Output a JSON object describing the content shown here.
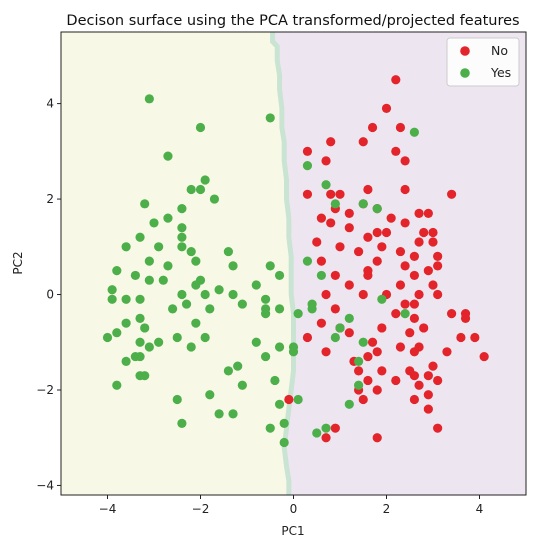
{
  "chart_data": {
    "type": "scatter",
    "title": "Decison surface using the PCA transformed/projected features",
    "xlabel": "PC1",
    "ylabel": "PC2",
    "xlim": [
      -5,
      5
    ],
    "ylim": [
      -4.2,
      5.5
    ],
    "xticks": [
      -4,
      -2,
      0,
      2,
      4
    ],
    "xtick_labels": [
      "−4",
      "−2",
      "0",
      "2",
      "4"
    ],
    "yticks": [
      -4,
      -2,
      0,
      2,
      4
    ],
    "ytick_labels": [
      "−4",
      "−2",
      "0",
      "2",
      "4"
    ],
    "grid": false,
    "legend_position": "top-right",
    "regions": [
      {
        "class": "Yes",
        "color": "#f8f8e6",
        "side": "left"
      },
      {
        "class": "No",
        "color": "#ede6f0",
        "side": "right"
      }
    ],
    "boundary_color": "#c9e4d2",
    "boundary": [
      [
        -0.45,
        5.5
      ],
      [
        -0.45,
        5.3
      ],
      [
        -0.35,
        5.2
      ],
      [
        -0.35,
        4.9
      ],
      [
        -0.3,
        4.6
      ],
      [
        -0.3,
        4.3
      ],
      [
        -0.25,
        3.9
      ],
      [
        -0.25,
        3.5
      ],
      [
        -0.2,
        3.2
      ],
      [
        -0.2,
        2.8
      ],
      [
        -0.15,
        2.4
      ],
      [
        -0.15,
        2.0
      ],
      [
        -0.1,
        1.6
      ],
      [
        -0.1,
        1.2
      ],
      [
        -0.05,
        0.8
      ],
      [
        -0.05,
        0.4
      ],
      [
        -0.05,
        0.0
      ],
      [
        0.0,
        -0.4
      ],
      [
        0.0,
        -0.8
      ],
      [
        0.0,
        -1.2
      ],
      [
        0.0,
        -1.6
      ],
      [
        -0.05,
        -2.0
      ],
      [
        -0.1,
        -2.4
      ],
      [
        -0.15,
        -2.8
      ],
      [
        -0.2,
        -3.2
      ],
      [
        -0.15,
        -3.6
      ],
      [
        -0.1,
        -3.9
      ],
      [
        -0.1,
        -4.2
      ]
    ],
    "series": [
      {
        "name": "No",
        "color": "#e3242b",
        "points": [
          [
            2.2,
            4.5
          ],
          [
            2.0,
            3.9
          ],
          [
            2.3,
            3.5
          ],
          [
            1.7,
            3.5
          ],
          [
            2.2,
            3.0
          ],
          [
            1.5,
            3.2
          ],
          [
            0.8,
            3.2
          ],
          [
            2.4,
            2.8
          ],
          [
            0.3,
            3.0
          ],
          [
            0.7,
            2.8
          ],
          [
            1.6,
            2.2
          ],
          [
            1.0,
            2.1
          ],
          [
            0.8,
            2.1
          ],
          [
            0.3,
            2.1
          ],
          [
            2.4,
            2.2
          ],
          [
            3.4,
            2.1
          ],
          [
            1.5,
            1.9
          ],
          [
            1.8,
            1.8
          ],
          [
            0.9,
            1.8
          ],
          [
            0.6,
            1.6
          ],
          [
            1.2,
            1.7
          ],
          [
            2.1,
            1.6
          ],
          [
            2.7,
            1.7
          ],
          [
            2.9,
            1.7
          ],
          [
            0.8,
            1.5
          ],
          [
            2.4,
            1.5
          ],
          [
            1.8,
            1.3
          ],
          [
            2.0,
            1.3
          ],
          [
            1.2,
            1.4
          ],
          [
            0.5,
            1.1
          ],
          [
            1.6,
            1.2
          ],
          [
            2.8,
            1.3
          ],
          [
            3.0,
            1.3
          ],
          [
            2.7,
            1.1
          ],
          [
            3.0,
            1.1
          ],
          [
            1.0,
            1.0
          ],
          [
            1.9,
            1.0
          ],
          [
            1.4,
            0.9
          ],
          [
            2.3,
            0.9
          ],
          [
            2.6,
            0.8
          ],
          [
            1.8,
            0.7
          ],
          [
            3.1,
            0.8
          ],
          [
            0.6,
            0.7
          ],
          [
            1.6,
            0.5
          ],
          [
            2.4,
            0.6
          ],
          [
            2.9,
            0.5
          ],
          [
            3.1,
            0.6
          ],
          [
            0.9,
            0.4
          ],
          [
            1.6,
            0.4
          ],
          [
            2.6,
            0.4
          ],
          [
            1.2,
            0.2
          ],
          [
            2.3,
            0.2
          ],
          [
            3.0,
            0.2
          ],
          [
            0.7,
            0.0
          ],
          [
            1.5,
            0.0
          ],
          [
            2.0,
            0.0
          ],
          [
            2.7,
            0.0
          ],
          [
            3.1,
            0.0
          ],
          [
            2.4,
            -0.2
          ],
          [
            2.6,
            -0.2
          ],
          [
            0.9,
            -0.3
          ],
          [
            2.2,
            -0.4
          ],
          [
            3.4,
            -0.4
          ],
          [
            3.7,
            -0.4
          ],
          [
            3.7,
            -0.5
          ],
          [
            2.6,
            -0.5
          ],
          [
            0.6,
            -0.6
          ],
          [
            1.0,
            -0.7
          ],
          [
            1.9,
            -0.7
          ],
          [
            2.8,
            -0.7
          ],
          [
            1.2,
            -0.8
          ],
          [
            2.5,
            -0.8
          ],
          [
            0.3,
            -0.9
          ],
          [
            3.6,
            -0.9
          ],
          [
            3.9,
            -0.9
          ],
          [
            1.7,
            -1.0
          ],
          [
            2.3,
            -1.1
          ],
          [
            2.7,
            -1.1
          ],
          [
            2.6,
            -1.2
          ],
          [
            1.3,
            -1.4
          ],
          [
            1.6,
            -1.3
          ],
          [
            1.8,
            -1.2
          ],
          [
            3.3,
            -1.2
          ],
          [
            4.1,
            -1.3
          ],
          [
            0.7,
            -1.2
          ],
          [
            1.4,
            -1.6
          ],
          [
            1.9,
            -1.6
          ],
          [
            2.5,
            -1.6
          ],
          [
            2.6,
            -1.7
          ],
          [
            2.9,
            -1.7
          ],
          [
            3.0,
            -1.5
          ],
          [
            1.6,
            -1.8
          ],
          [
            2.2,
            -1.8
          ],
          [
            3.1,
            -1.8
          ],
          [
            1.4,
            -2.0
          ],
          [
            1.8,
            -2.0
          ],
          [
            2.7,
            -1.9
          ],
          [
            2.9,
            -2.1
          ],
          [
            1.5,
            -2.2
          ],
          [
            2.6,
            -2.2
          ],
          [
            2.9,
            -2.4
          ],
          [
            0.9,
            -2.8
          ],
          [
            1.8,
            -3.0
          ],
          [
            3.1,
            -2.8
          ],
          [
            0.7,
            -3.0
          ],
          [
            -0.1,
            -2.2
          ]
        ]
      },
      {
        "name": "Yes",
        "color": "#4daf4a",
        "points": [
          [
            -3.1,
            4.1
          ],
          [
            -2.0,
            3.5
          ],
          [
            -0.5,
            3.7
          ],
          [
            -2.7,
            2.9
          ],
          [
            -1.9,
            2.4
          ],
          [
            -2.0,
            2.2
          ],
          [
            -2.2,
            2.2
          ],
          [
            -1.7,
            2.0
          ],
          [
            -3.2,
            1.9
          ],
          [
            -2.4,
            1.8
          ],
          [
            -2.7,
            1.6
          ],
          [
            -3.0,
            1.5
          ],
          [
            -2.4,
            1.4
          ],
          [
            -2.4,
            1.2
          ],
          [
            -3.3,
            1.2
          ],
          [
            -2.4,
            1.0
          ],
          [
            -2.9,
            1.0
          ],
          [
            -3.6,
            1.0
          ],
          [
            -1.4,
            0.9
          ],
          [
            -2.2,
            0.9
          ],
          [
            -3.1,
            0.7
          ],
          [
            -2.1,
            0.7
          ],
          [
            -2.7,
            0.6
          ],
          [
            -1.3,
            0.6
          ],
          [
            -0.5,
            0.6
          ],
          [
            -3.8,
            0.5
          ],
          [
            -3.4,
            0.4
          ],
          [
            -2.8,
            0.3
          ],
          [
            -2.0,
            0.3
          ],
          [
            -2.1,
            0.2
          ],
          [
            -3.1,
            0.3
          ],
          [
            -0.8,
            0.2
          ],
          [
            -1.6,
            0.1
          ],
          [
            -3.9,
            0.1
          ],
          [
            -2.4,
            0.0
          ],
          [
            -1.9,
            0.0
          ],
          [
            -1.3,
            0.0
          ],
          [
            -0.6,
            -0.1
          ],
          [
            -3.9,
            -0.1
          ],
          [
            -3.3,
            -0.1
          ],
          [
            -2.3,
            -0.2
          ],
          [
            -1.1,
            -0.2
          ],
          [
            -3.6,
            -0.1
          ],
          [
            -2.6,
            -0.3
          ],
          [
            -1.8,
            -0.3
          ],
          [
            -0.3,
            -0.3
          ],
          [
            -0.6,
            -0.4
          ],
          [
            -3.3,
            -0.5
          ],
          [
            -3.6,
            -0.6
          ],
          [
            -3.2,
            -0.7
          ],
          [
            -2.1,
            -0.6
          ],
          [
            -3.8,
            -0.8
          ],
          [
            -2.5,
            -0.9
          ],
          [
            -1.9,
            -0.9
          ],
          [
            -4.0,
            -0.9
          ],
          [
            -3.3,
            -1.0
          ],
          [
            -2.9,
            -1.0
          ],
          [
            -0.8,
            -1.0
          ],
          [
            -2.2,
            -1.1
          ],
          [
            -3.1,
            -1.1
          ],
          [
            -3.3,
            -1.3
          ],
          [
            -3.4,
            -1.3
          ],
          [
            -3.6,
            -1.4
          ],
          [
            -0.3,
            -1.1
          ],
          [
            -0.6,
            -1.3
          ],
          [
            -1.2,
            -1.5
          ],
          [
            -1.4,
            -1.6
          ],
          [
            -3.2,
            -1.7
          ],
          [
            -3.3,
            -1.7
          ],
          [
            -3.8,
            -1.9
          ],
          [
            -1.1,
            -1.9
          ],
          [
            -0.4,
            -1.8
          ],
          [
            -1.8,
            -2.1
          ],
          [
            -2.5,
            -2.2
          ],
          [
            -1.6,
            -2.5
          ],
          [
            -2.4,
            -2.7
          ],
          [
            -0.3,
            -2.3
          ],
          [
            -0.2,
            -2.7
          ],
          [
            -1.3,
            -2.5
          ],
          [
            -0.5,
            -2.8
          ],
          [
            -0.2,
            -3.1
          ],
          [
            0.0,
            -1.1
          ],
          [
            -0.6,
            -0.3
          ],
          [
            0.1,
            -0.4
          ],
          [
            0.4,
            -0.2
          ],
          [
            0.3,
            0.7
          ],
          [
            0.3,
            2.7
          ],
          [
            0.7,
            2.3
          ],
          [
            0.9,
            1.9
          ],
          [
            1.5,
            1.9
          ],
          [
            1.8,
            1.8
          ],
          [
            0.6,
            0.4
          ],
          [
            0.4,
            -0.3
          ],
          [
            0.9,
            -0.9
          ],
          [
            1.2,
            -0.5
          ],
          [
            1.4,
            -1.4
          ],
          [
            1.9,
            -0.1
          ],
          [
            1.4,
            -1.9
          ],
          [
            1.2,
            -2.3
          ],
          [
            0.7,
            -2.8
          ],
          [
            0.5,
            -2.9
          ],
          [
            2.6,
            3.4
          ],
          [
            2.4,
            -0.4
          ],
          [
            1.0,
            -0.7
          ],
          [
            1.5,
            -1.0
          ],
          [
            0.1,
            -2.2
          ],
          [
            0.0,
            -1.2
          ],
          [
            -0.3,
            0.4
          ]
        ]
      }
    ]
  }
}
